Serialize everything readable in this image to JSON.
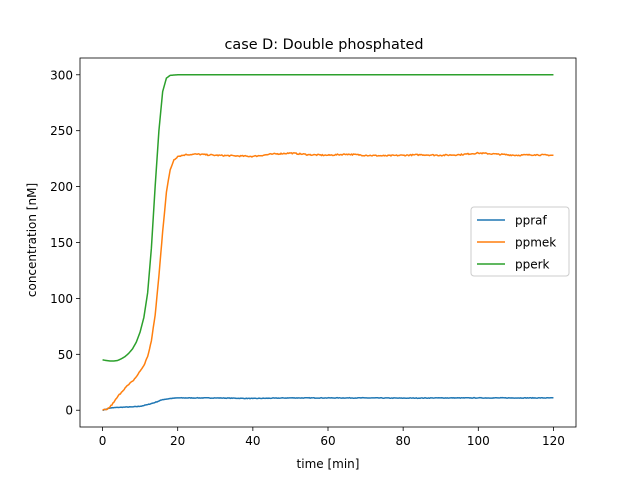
{
  "chart_data": {
    "type": "line",
    "title": "case D: Double phosphated",
    "xlabel": "time [min]",
    "ylabel": "concentration [nM]",
    "xlim": [
      -6,
      126
    ],
    "ylim": [
      -15,
      315
    ],
    "xticks": [
      0,
      20,
      40,
      60,
      80,
      100,
      120
    ],
    "yticks": [
      0,
      50,
      100,
      150,
      200,
      250,
      300
    ],
    "grid": false,
    "legend": {
      "position": "center-right"
    },
    "series": [
      {
        "name": "ppraf",
        "color": "#1f77b4",
        "points": [
          [
            0,
            0
          ],
          [
            1,
            1
          ],
          [
            2,
            2
          ],
          [
            4,
            2.5
          ],
          [
            6,
            2.8
          ],
          [
            8,
            3
          ],
          [
            10,
            3.5
          ],
          [
            12,
            5
          ],
          [
            14,
            7
          ],
          [
            16,
            9.5
          ],
          [
            18,
            10.5
          ],
          [
            20,
            11
          ],
          [
            25,
            11
          ],
          [
            30,
            11
          ],
          [
            40,
            10.5
          ],
          [
            50,
            11
          ],
          [
            60,
            11
          ],
          [
            70,
            11
          ],
          [
            80,
            10.8
          ],
          [
            90,
            11
          ],
          [
            100,
            11
          ],
          [
            110,
            11
          ],
          [
            120,
            11
          ]
        ]
      },
      {
        "name": "ppmek",
        "color": "#ff7f0e",
        "points": [
          [
            0,
            0
          ],
          [
            1,
            0.5
          ],
          [
            2,
            3
          ],
          [
            3,
            7
          ],
          [
            4,
            12
          ],
          [
            5,
            16
          ],
          [
            6,
            20
          ],
          [
            7,
            23
          ],
          [
            8,
            26
          ],
          [
            9,
            30
          ],
          [
            10,
            35
          ],
          [
            11,
            40
          ],
          [
            12,
            48
          ],
          [
            13,
            62
          ],
          [
            14,
            85
          ],
          [
            15,
            120
          ],
          [
            16,
            160
          ],
          [
            17,
            195
          ],
          [
            18,
            215
          ],
          [
            19,
            224
          ],
          [
            20,
            227
          ],
          [
            22,
            228.5
          ],
          [
            25,
            229
          ],
          [
            30,
            228
          ],
          [
            35,
            227.5
          ],
          [
            40,
            227
          ],
          [
            45,
            229
          ],
          [
            50,
            230
          ],
          [
            55,
            228.5
          ],
          [
            60,
            228
          ],
          [
            65,
            229
          ],
          [
            70,
            228
          ],
          [
            75,
            227.5
          ],
          [
            80,
            228
          ],
          [
            85,
            228.5
          ],
          [
            90,
            228
          ],
          [
            95,
            228.5
          ],
          [
            100,
            230
          ],
          [
            105,
            229
          ],
          [
            110,
            228
          ],
          [
            115,
            228.5
          ],
          [
            120,
            228
          ]
        ]
      },
      {
        "name": "pperk",
        "color": "#2ca02c",
        "points": [
          [
            0,
            45
          ],
          [
            1,
            44.5
          ],
          [
            2,
            44
          ],
          [
            3,
            44
          ],
          [
            4,
            44.5
          ],
          [
            5,
            46
          ],
          [
            6,
            48
          ],
          [
            7,
            51
          ],
          [
            8,
            55
          ],
          [
            9,
            61
          ],
          [
            10,
            70
          ],
          [
            11,
            83
          ],
          [
            12,
            105
          ],
          [
            13,
            145
          ],
          [
            14,
            200
          ],
          [
            15,
            250
          ],
          [
            16,
            285
          ],
          [
            17,
            297
          ],
          [
            18,
            299.5
          ],
          [
            20,
            300
          ],
          [
            30,
            300
          ],
          [
            40,
            300
          ],
          [
            50,
            300
          ],
          [
            60,
            300
          ],
          [
            70,
            300
          ],
          [
            80,
            300
          ],
          [
            90,
            300
          ],
          [
            100,
            300
          ],
          [
            110,
            300
          ],
          [
            120,
            300
          ]
        ]
      }
    ]
  }
}
